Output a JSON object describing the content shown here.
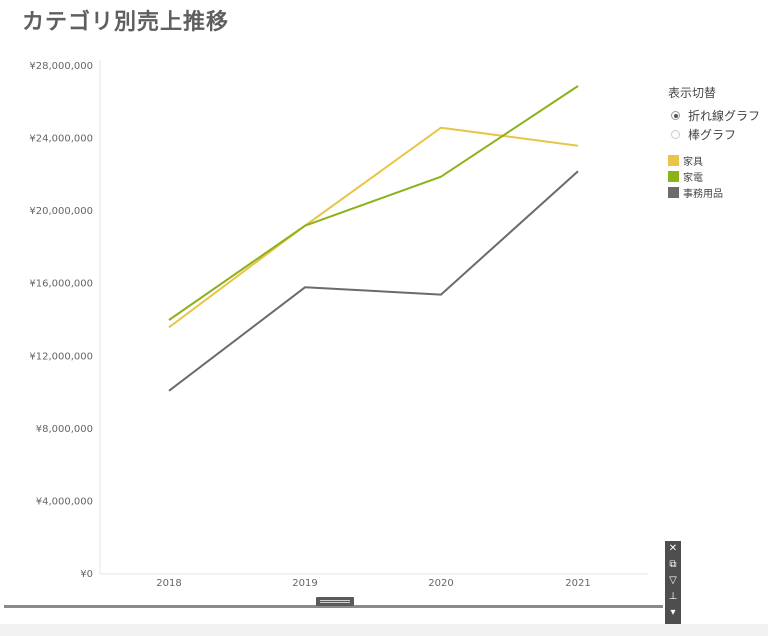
{
  "title": "カテゴリ別売上推移",
  "toggle": {
    "title": "表示切替",
    "options": [
      {
        "label": "折れ線グラフ",
        "selected": true
      },
      {
        "label": "棒グラフ",
        "selected": false
      }
    ]
  },
  "chart_data": {
    "type": "line",
    "x": [
      "2018",
      "2019",
      "2020",
      "2021"
    ],
    "y_ticks": [
      0,
      4000000,
      8000000,
      12000000,
      16000000,
      20000000,
      24000000,
      28000000
    ],
    "y_tick_labels": [
      "¥0",
      "¥4,000,000",
      "¥8,000,000",
      "¥12,000,000",
      "¥16,000,000",
      "¥20,000,000",
      "¥24,000,000",
      "¥28,000,000"
    ],
    "ylim": [
      0,
      28000000
    ],
    "grid": false,
    "legend_position": "right",
    "series": [
      {
        "name": "家具",
        "color": "#e8c547",
        "values": [
          13600000,
          19200000,
          24600000,
          23600000
        ]
      },
      {
        "name": "家電",
        "color": "#8cb21a",
        "values": [
          14000000,
          19200000,
          21900000,
          26900000
        ]
      },
      {
        "name": "事務用品",
        "color": "#6e6a6a",
        "values": [
          10100000,
          15800000,
          15400000,
          22200000
        ]
      }
    ]
  },
  "toolbar": {
    "icons": [
      "close-icon",
      "external-link-icon",
      "filter-icon",
      "pin-icon",
      "dropdown-icon"
    ],
    "glyphs": [
      "✕",
      "⧉",
      "▽",
      "⊥",
      "▾"
    ]
  }
}
